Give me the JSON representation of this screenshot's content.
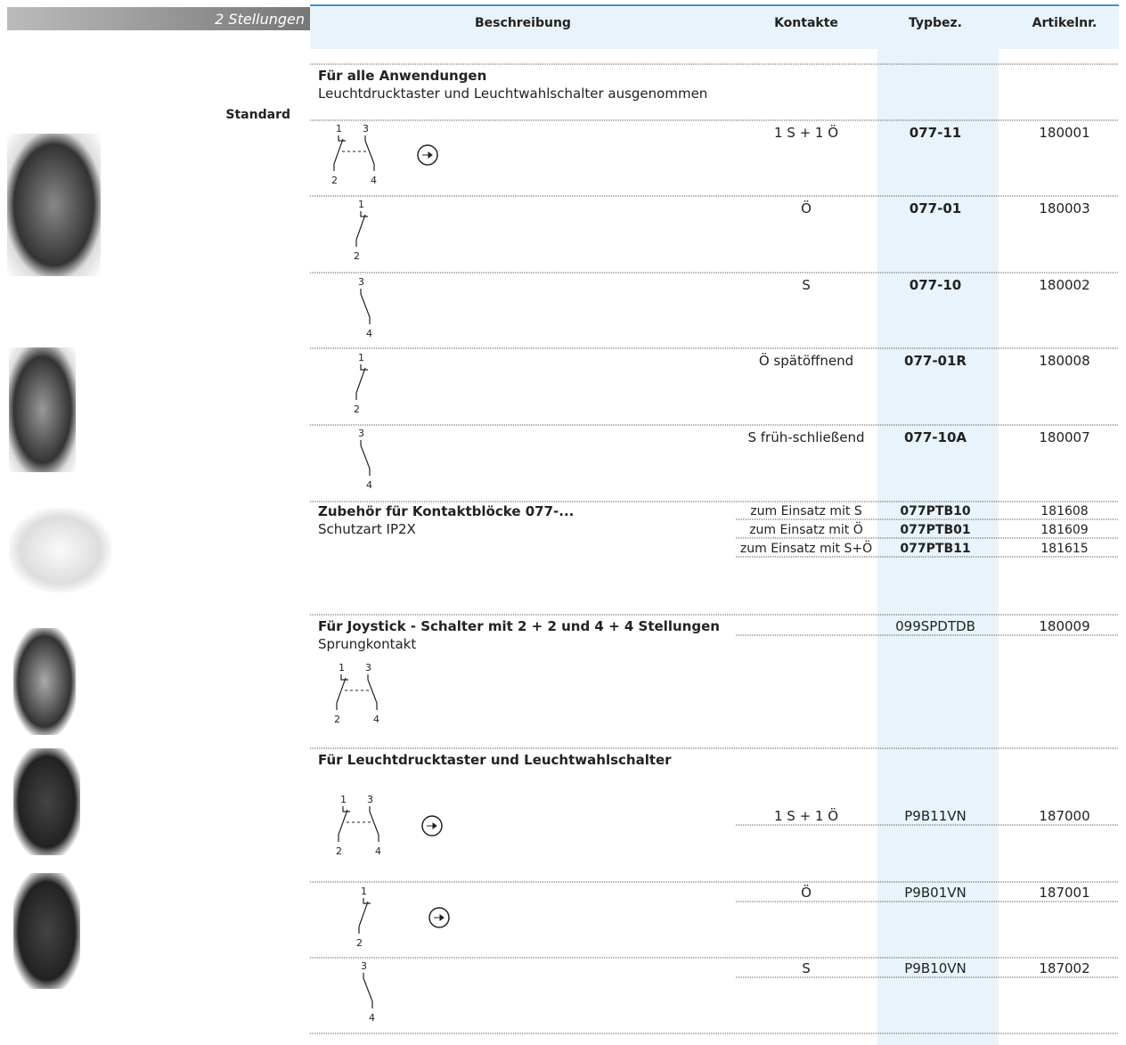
{
  "header": {
    "section": "2 Stellungen",
    "columns": [
      "Beschreibung",
      "Kontakte",
      "Typbez.",
      "Artikelnr."
    ]
  },
  "group_label": "Standard",
  "sections": [
    {
      "title": "Für alle Anwendungen",
      "subtitle": "Leuchtdrucktaster und Leuchtwahlschalter ausgenommen",
      "rows": [
        {
          "kontakte": "1 S + 1 Ö",
          "typ": "077-11",
          "artikel": "180001"
        },
        {
          "kontakte": "Ö",
          "typ": "077-01",
          "artikel": "180003"
        },
        {
          "kontakte": "S",
          "typ": "077-10",
          "artikel": "180002"
        },
        {
          "kontakte": "Ö spätöffnend",
          "typ": "077-01R",
          "artikel": "180008"
        },
        {
          "kontakte": "S früh-schließend",
          "typ": "077-10A",
          "artikel": "180007"
        }
      ]
    },
    {
      "title": "Zubehör für Kontaktblöcke 077-...",
      "subtitle": "Schutzart IP2X",
      "rows": [
        {
          "kontakte": "zum Einsatz mit S",
          "typ": "077PTB10",
          "artikel": "181608"
        },
        {
          "kontakte": "zum Einsatz mit Ö",
          "typ": "077PTB01",
          "artikel": "181609"
        },
        {
          "kontakte": "zum Einsatz mit S+Ö",
          "typ": "077PTB11",
          "artikel": "181615"
        }
      ]
    },
    {
      "title": "Für Joystick - Schalter mit 2 + 2 und 4 + 4 Stellungen",
      "subtitle": "Sprungkontakt",
      "rows": [
        {
          "kontakte": "",
          "typ": "099SPDTDB",
          "artikel": "180009"
        }
      ]
    },
    {
      "title": "Für Leuchtdrucktaster und Leuchtwahlschalter",
      "rows": [
        {
          "kontakte": "1 S + 1 Ö",
          "typ": "P9B11VN",
          "artikel": "187000"
        },
        {
          "kontakte": "Ö",
          "typ": "P9B01VN",
          "artikel": "187001"
        },
        {
          "kontakte": "S",
          "typ": "P9B10VN",
          "artikel": "187002"
        }
      ]
    }
  ],
  "diagrams": [
    {
      "labels": [
        "1",
        "3",
        "2",
        "4"
      ]
    },
    {
      "labels": [
        "1",
        "2"
      ]
    },
    {
      "labels": [
        "3",
        "4"
      ]
    },
    {
      "labels": [
        "1",
        "2"
      ]
    },
    {
      "labels": [
        "3",
        "4"
      ]
    },
    {
      "labels": [
        "1",
        "3",
        "2",
        "4"
      ]
    },
    {
      "labels": [
        "1",
        "3",
        "2",
        "4"
      ]
    },
    {
      "labels": [
        "1",
        "2"
      ]
    },
    {
      "labels": [
        "3",
        "4"
      ]
    }
  ]
}
